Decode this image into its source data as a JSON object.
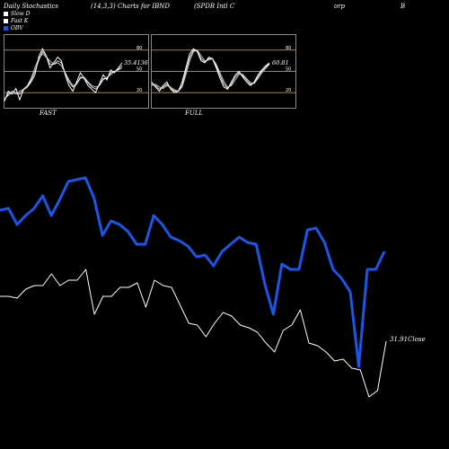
{
  "header": {
    "title_left": "Daily Stochastics",
    "title_params": "(14,3,3) Charts for IBND",
    "title_name": "(SPDR Intl C",
    "title_name_cont": "orp",
    "title_b": "B"
  },
  "legend": [
    {
      "label": "Slow  D",
      "color": "#ffffff"
    },
    {
      "label": "Fast K",
      "color": "#ffffff"
    },
    {
      "label": "OBV",
      "color": "#1a56e8"
    }
  ],
  "colors": {
    "background": "#000000",
    "obv": "#1a56e8",
    "close": "#ffffff",
    "band": "#b8860b",
    "axis_text": "#ffffff"
  },
  "chart_data": [
    {
      "type": "line",
      "label": "FAST",
      "ylim": [
        0,
        100
      ],
      "level_lines": [
        20,
        50,
        80
      ],
      "ticks": [
        "80",
        "50",
        "20"
      ],
      "last_value_label": "35.4136",
      "series": [
        {
          "values": [
            8,
            22,
            18,
            26,
            10,
            24,
            28,
            35,
            45,
            70,
            82,
            72,
            55,
            62,
            70,
            65,
            45,
            30,
            22,
            35,
            48,
            40,
            30,
            25,
            20,
            32,
            45,
            38,
            52,
            48,
            55,
            62
          ]
        },
        {
          "values": [
            12,
            16,
            20,
            18,
            22,
            25,
            30,
            40,
            55,
            68,
            75,
            70,
            65,
            60,
            62,
            58,
            48,
            38,
            30,
            32,
            40,
            42,
            35,
            30,
            28,
            30,
            38,
            42,
            45,
            50,
            52,
            55
          ]
        },
        {
          "values": [
            10,
            18,
            22,
            20,
            18,
            24,
            28,
            38,
            50,
            65,
            78,
            72,
            60,
            60,
            65,
            62,
            48,
            35,
            28,
            32,
            42,
            40,
            34,
            28,
            25,
            30,
            40,
            40,
            48,
            50,
            53,
            58
          ]
        }
      ]
    },
    {
      "type": "line",
      "label": "FULL",
      "ylim": [
        0,
        100
      ],
      "level_lines": [
        20,
        50,
        80
      ],
      "ticks": [
        "80",
        "50",
        "20"
      ],
      "last_value_label": "60.81",
      "series": [
        {
          "values": [
            35,
            28,
            22,
            30,
            35,
            25,
            20,
            22,
            35,
            55,
            75,
            82,
            78,
            65,
            62,
            70,
            68,
            55,
            40,
            28,
            25,
            35,
            45,
            50,
            42,
            35,
            30,
            35,
            45,
            52,
            58,
            62
          ]
        },
        {
          "values": [
            30,
            32,
            28,
            26,
            30,
            28,
            24,
            22,
            28,
            45,
            65,
            78,
            80,
            72,
            65,
            66,
            68,
            60,
            48,
            36,
            28,
            30,
            38,
            46,
            46,
            40,
            34,
            33,
            40,
            48,
            54,
            60
          ]
        },
        {
          "values": [
            32,
            30,
            25,
            28,
            32,
            26,
            22,
            22,
            30,
            50,
            70,
            80,
            79,
            68,
            63,
            68,
            68,
            58,
            44,
            32,
            26,
            32,
            42,
            48,
            44,
            38,
            32,
            34,
            42,
            50,
            56,
            61
          ]
        }
      ]
    },
    {
      "type": "line",
      "series_obv": [
        234,
        232,
        250,
        240,
        232,
        218,
        240,
        222,
        202,
        200,
        198,
        220,
        262,
        246,
        250,
        258,
        272,
        272,
        240,
        250,
        264,
        268,
        274,
        286,
        284,
        296,
        280,
        272,
        264,
        270,
        272,
        316,
        350,
        294,
        300,
        300,
        256,
        254,
        270,
        300,
        310,
        325,
        408,
        300,
        300,
        280
      ],
      "series_close": [
        330,
        330,
        332,
        322,
        318,
        318,
        305,
        318,
        312,
        312,
        300,
        350,
        330,
        330,
        320,
        320,
        315,
        342,
        312,
        318,
        320,
        340,
        360,
        362,
        375,
        360,
        348,
        352,
        362,
        365,
        370,
        382,
        392,
        368,
        362,
        345,
        382,
        385,
        392,
        402,
        400,
        410,
        412,
        442,
        435,
        380
      ],
      "obv_label": "",
      "close_label": "31.91Close"
    }
  ],
  "panels": {
    "fast_label": "FAST",
    "full_label": "FULL"
  }
}
